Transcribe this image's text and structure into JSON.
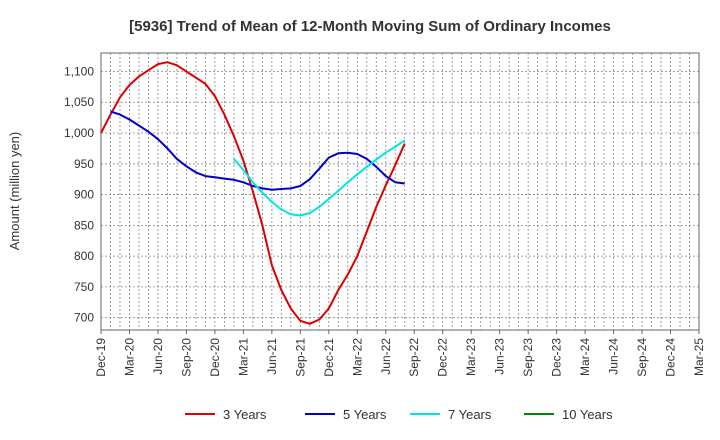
{
  "chart_data": {
    "type": "line",
    "title": "[5936]  Trend of Mean of 12-Month Moving Sum of Ordinary Incomes",
    "xlabel": "",
    "ylabel": "Amount (million yen)",
    "ylim": [
      680,
      1130
    ],
    "yticks": [
      700,
      750,
      800,
      850,
      900,
      950,
      1000,
      1050,
      1100
    ],
    "ytick_labels": [
      "700",
      "750",
      "800",
      "850",
      "900",
      "950",
      "1,000",
      "1,050",
      "1,100"
    ],
    "x_tick_labels": [
      "Dec-19",
      "Mar-20",
      "Jun-20",
      "Sep-20",
      "Dec-20",
      "Mar-21",
      "Jun-21",
      "Sep-21",
      "Dec-21",
      "Mar-22",
      "Jun-22",
      "Sep-22",
      "Dec-22",
      "Mar-23",
      "Jun-23",
      "Sep-23",
      "Dec-23",
      "Mar-24",
      "Jun-24",
      "Sep-24",
      "Dec-24",
      "Mar-25"
    ],
    "grid": true,
    "legend_position": "bottom",
    "series": [
      {
        "name": "3 Years",
        "color": "#dd0000",
        "points": [
          [
            0,
            1000
          ],
          [
            1,
            1030
          ],
          [
            2,
            1058
          ],
          [
            3,
            1078
          ],
          [
            4,
            1092
          ],
          [
            5,
            1102
          ],
          [
            6,
            1112
          ],
          [
            7,
            1115
          ],
          [
            8,
            1110
          ],
          [
            9,
            1100
          ],
          [
            10,
            1090
          ],
          [
            11,
            1080
          ],
          [
            12,
            1060
          ],
          [
            13,
            1030
          ],
          [
            14,
            995
          ],
          [
            15,
            955
          ],
          [
            16,
            905
          ],
          [
            17,
            850
          ],
          [
            18,
            785
          ],
          [
            19,
            745
          ],
          [
            20,
            715
          ],
          [
            21,
            695
          ],
          [
            22,
            690
          ],
          [
            23,
            697
          ],
          [
            24,
            715
          ],
          [
            25,
            745
          ],
          [
            26,
            770
          ],
          [
            27,
            800
          ],
          [
            28,
            840
          ],
          [
            29,
            880
          ],
          [
            30,
            915
          ],
          [
            31,
            948
          ],
          [
            32,
            983
          ]
        ]
      },
      {
        "name": "5 Years",
        "color": "#0000cc",
        "points": [
          [
            1,
            1035
          ],
          [
            2,
            1030
          ],
          [
            3,
            1022
          ],
          [
            4,
            1012
          ],
          [
            5,
            1002
          ],
          [
            6,
            990
          ],
          [
            7,
            975
          ],
          [
            8,
            958
          ],
          [
            9,
            946
          ],
          [
            10,
            936
          ],
          [
            11,
            930
          ],
          [
            12,
            928
          ],
          [
            13,
            926
          ],
          [
            14,
            924
          ],
          [
            15,
            920
          ],
          [
            16,
            914
          ],
          [
            17,
            910
          ],
          [
            18,
            908
          ],
          [
            19,
            909
          ],
          [
            20,
            910
          ],
          [
            21,
            914
          ],
          [
            22,
            925
          ],
          [
            23,
            942
          ],
          [
            24,
            960
          ],
          [
            25,
            967
          ],
          [
            26,
            968
          ],
          [
            27,
            966
          ],
          [
            28,
            958
          ],
          [
            29,
            945
          ],
          [
            30,
            930
          ],
          [
            31,
            920
          ],
          [
            32,
            918
          ]
        ]
      },
      {
        "name": "7 Years",
        "color": "#00e5e5",
        "points": [
          [
            14,
            958
          ],
          [
            15,
            940
          ],
          [
            16,
            920
          ],
          [
            17,
            903
          ],
          [
            18,
            888
          ],
          [
            19,
            876
          ],
          [
            20,
            868
          ],
          [
            21,
            866
          ],
          [
            22,
            870
          ],
          [
            23,
            880
          ],
          [
            24,
            893
          ],
          [
            25,
            906
          ],
          [
            26,
            920
          ],
          [
            27,
            933
          ],
          [
            28,
            945
          ],
          [
            29,
            957
          ],
          [
            30,
            968
          ],
          [
            31,
            978
          ],
          [
            32,
            988
          ]
        ]
      },
      {
        "name": "10 Years",
        "color": "#008800",
        "points": []
      }
    ]
  }
}
